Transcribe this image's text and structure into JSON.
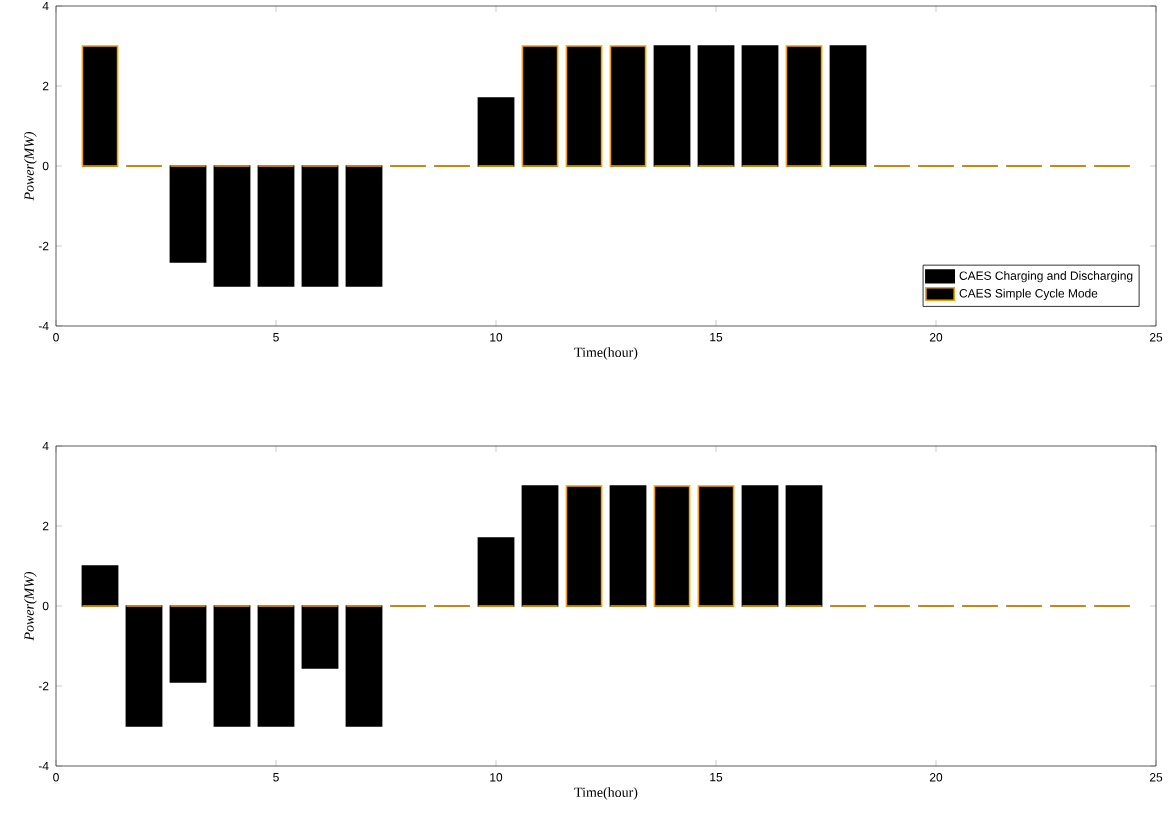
{
  "chart_data": [
    {
      "type": "bar",
      "xlabel": "Time(hour)",
      "ylabel": "Power(MW)",
      "x": [
        1,
        2,
        3,
        4,
        5,
        6,
        7,
        8,
        9,
        10,
        11,
        12,
        13,
        14,
        15,
        16,
        17,
        18,
        19,
        20,
        21,
        22,
        23,
        24
      ],
      "series": [
        {
          "name": "CAES Charging and Discharging",
          "color": "#000000",
          "values": [
            0,
            0,
            -2.4,
            -3,
            -3,
            -3,
            -3,
            0,
            0,
            1.7,
            0,
            0,
            0,
            3,
            3,
            3,
            0,
            3,
            0,
            0,
            0,
            0,
            0,
            0
          ]
        },
        {
          "name": "CAES Simple Cycle Mode",
          "color": "#f0a30a",
          "values": [
            3,
            0,
            0,
            0,
            0,
            0,
            0,
            0,
            0,
            0,
            3,
            3,
            3,
            0,
            0,
            0,
            3,
            0,
            0,
            0,
            0,
            0,
            0,
            0
          ]
        }
      ],
      "xlim": [
        0,
        25
      ],
      "xticks": [
        0,
        5,
        10,
        15,
        20,
        25
      ],
      "ylim": [
        -4,
        4
      ],
      "yticks": [
        -4,
        -2,
        0,
        2,
        4
      ],
      "legend": "bottom right"
    },
    {
      "type": "bar",
      "xlabel": "Time(hour)",
      "ylabel": "Power(MW)",
      "x": [
        1,
        2,
        3,
        4,
        5,
        6,
        7,
        8,
        9,
        10,
        11,
        12,
        13,
        14,
        15,
        16,
        17,
        18,
        19,
        20,
        21,
        22,
        23,
        24
      ],
      "series": [
        {
          "color": "#000000",
          "values": [
            1,
            -3,
            -1.9,
            -3,
            -3,
            -1.55,
            -3,
            0,
            0,
            1.7,
            3,
            0,
            3,
            0,
            0,
            3,
            3,
            0,
            0,
            0,
            0,
            0,
            0,
            0
          ]
        },
        {
          "color": "#f0a30a",
          "values": [
            0,
            0,
            0,
            0,
            0,
            0,
            0,
            0,
            0,
            0,
            0,
            3,
            0,
            3,
            3,
            0,
            0,
            0,
            0,
            0,
            0,
            0,
            0,
            0
          ]
        }
      ],
      "xlim": [
        0,
        25
      ],
      "xticks": [
        0,
        5,
        10,
        15,
        20,
        25
      ],
      "ylim": [
        -4,
        4
      ],
      "yticks": [
        -4,
        -2,
        0,
        2,
        4
      ]
    }
  ]
}
